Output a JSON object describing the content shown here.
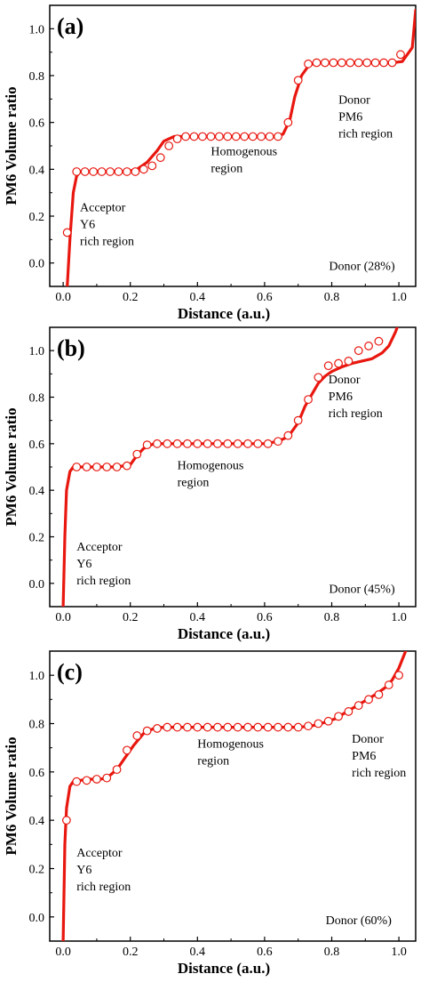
{
  "chart_data": [
    {
      "type": "line",
      "panel_label": "(a)",
      "xlabel": "Distance (a.u.)",
      "ylabel": "PM6 Volume ratio",
      "xlim": [
        -0.04,
        1.05
      ],
      "ylim": [
        -0.1,
        1.1
      ],
      "xticks": [
        "0.0",
        "0.2",
        "0.4",
        "0.6",
        "0.8",
        "1.0"
      ],
      "yticks": [
        "0.0",
        "0.2",
        "0.4",
        "0.6",
        "0.8",
        "1.0"
      ],
      "grid": false,
      "series": [
        {
          "color": "#e8170f",
          "x": [
            0.012,
            0.02,
            0.03,
            0.04,
            0.05,
            0.07,
            0.1,
            0.13,
            0.16,
            0.19,
            0.22,
            0.25,
            0.28,
            0.3,
            0.33,
            0.36,
            0.4,
            0.44,
            0.48,
            0.52,
            0.56,
            0.6,
            0.63,
            0.655,
            0.675,
            0.69,
            0.71,
            0.73,
            0.75,
            0.78,
            0.82,
            0.86,
            0.9,
            0.94,
            0.98,
            1.01,
            1.04,
            1.05
          ],
          "y": [
            -0.1,
            0.1,
            0.3,
            0.37,
            0.39,
            0.39,
            0.39,
            0.39,
            0.39,
            0.39,
            0.4,
            0.43,
            0.48,
            0.52,
            0.54,
            0.54,
            0.54,
            0.54,
            0.54,
            0.54,
            0.54,
            0.54,
            0.54,
            0.55,
            0.61,
            0.71,
            0.8,
            0.84,
            0.855,
            0.855,
            0.855,
            0.855,
            0.855,
            0.855,
            0.855,
            0.86,
            0.92,
            1.08
          ]
        }
      ],
      "markers": {
        "x": [
          0.012,
          0.04,
          0.065,
          0.09,
          0.115,
          0.14,
          0.165,
          0.19,
          0.215,
          0.24,
          0.265,
          0.29,
          0.315,
          0.34,
          0.365,
          0.39,
          0.415,
          0.44,
          0.465,
          0.49,
          0.515,
          0.54,
          0.565,
          0.59,
          0.615,
          0.64,
          0.67,
          0.7,
          0.73,
          0.755,
          0.78,
          0.805,
          0.83,
          0.855,
          0.88,
          0.905,
          0.93,
          0.955,
          0.98,
          1.005
        ],
        "y": [
          0.13,
          0.39,
          0.39,
          0.39,
          0.39,
          0.39,
          0.39,
          0.39,
          0.39,
          0.4,
          0.415,
          0.45,
          0.5,
          0.53,
          0.54,
          0.54,
          0.54,
          0.54,
          0.54,
          0.54,
          0.54,
          0.54,
          0.54,
          0.54,
          0.54,
          0.54,
          0.6,
          0.78,
          0.85,
          0.855,
          0.855,
          0.855,
          0.855,
          0.855,
          0.855,
          0.855,
          0.855,
          0.855,
          0.855,
          0.89
        ]
      },
      "annotations": [
        {
          "lines": [
            "Acceptor",
            "Y6",
            "rich region"
          ],
          "x": 0.05,
          "y": 0.22
        },
        {
          "lines": [
            "Homogenous",
            "region"
          ],
          "x": 0.44,
          "y": 0.46
        },
        {
          "lines": [
            "Donor",
            "PM6",
            "rich region"
          ],
          "x": 0.82,
          "y": 0.68
        },
        {
          "lines": [
            "Donor (28%)"
          ],
          "x": 0.89,
          "y": -0.03,
          "align": "middle"
        }
      ]
    },
    {
      "type": "line",
      "panel_label": "(b)",
      "xlabel": "Distance (a.u.)",
      "ylabel": "PM6 Volume ratio",
      "xlim": [
        -0.04,
        1.05
      ],
      "ylim": [
        -0.1,
        1.1
      ],
      "xticks": [
        "0.0",
        "0.2",
        "0.4",
        "0.6",
        "0.8",
        "1.0"
      ],
      "yticks": [
        "0.0",
        "0.2",
        "0.4",
        "0.6",
        "0.8",
        "1.0"
      ],
      "grid": false,
      "series": [
        {
          "color": "#e8170f",
          "x": [
            0.0,
            0.005,
            0.01,
            0.02,
            0.03,
            0.05,
            0.08,
            0.12,
            0.16,
            0.2,
            0.22,
            0.24,
            0.27,
            0.3,
            0.35,
            0.4,
            0.45,
            0.5,
            0.55,
            0.6,
            0.64,
            0.67,
            0.7,
            0.72,
            0.74,
            0.76,
            0.78,
            0.8,
            0.83,
            0.86,
            0.89,
            0.92,
            0.95,
            0.97,
            0.99,
            1.0
          ],
          "y": [
            -0.1,
            0.2,
            0.4,
            0.48,
            0.5,
            0.5,
            0.5,
            0.5,
            0.5,
            0.51,
            0.55,
            0.58,
            0.6,
            0.6,
            0.6,
            0.6,
            0.6,
            0.6,
            0.6,
            0.6,
            0.61,
            0.63,
            0.69,
            0.76,
            0.81,
            0.86,
            0.89,
            0.91,
            0.93,
            0.945,
            0.955,
            0.965,
            0.99,
            1.02,
            1.08,
            1.12
          ]
        }
      ],
      "markers": {
        "x": [
          0.04,
          0.07,
          0.1,
          0.13,
          0.16,
          0.19,
          0.22,
          0.25,
          0.28,
          0.31,
          0.34,
          0.37,
          0.4,
          0.43,
          0.46,
          0.49,
          0.52,
          0.55,
          0.58,
          0.61,
          0.64,
          0.67,
          0.7,
          0.73,
          0.76,
          0.79,
          0.82,
          0.85,
          0.88,
          0.91,
          0.94
        ],
        "y": [
          0.5,
          0.5,
          0.5,
          0.5,
          0.5,
          0.505,
          0.555,
          0.595,
          0.6,
          0.6,
          0.6,
          0.6,
          0.6,
          0.6,
          0.6,
          0.6,
          0.6,
          0.6,
          0.6,
          0.6,
          0.61,
          0.635,
          0.7,
          0.79,
          0.885,
          0.935,
          0.945,
          0.955,
          1.0,
          1.02,
          1.04
        ]
      },
      "annotations": [
        {
          "lines": [
            "Acceptor",
            "Y6",
            "rich region"
          ],
          "x": 0.04,
          "y": 0.14
        },
        {
          "lines": [
            "Homogenous",
            "region"
          ],
          "x": 0.34,
          "y": 0.49
        },
        {
          "lines": [
            "Donor",
            "PM6",
            "rich region"
          ],
          "x": 0.79,
          "y": 0.86
        },
        {
          "lines": [
            "Donor (45%)"
          ],
          "x": 0.89,
          "y": -0.04,
          "align": "middle"
        }
      ]
    },
    {
      "type": "line",
      "panel_label": "(c)",
      "xlabel": "Distance (a.u.)",
      "ylabel": "PM6 Volume ratio",
      "xlim": [
        -0.04,
        1.05
      ],
      "ylim": [
        -0.1,
        1.1
      ],
      "xticks": [
        "0.0",
        "0.2",
        "0.4",
        "0.6",
        "0.8",
        "1.0"
      ],
      "yticks": [
        "0.0",
        "0.2",
        "0.4",
        "0.6",
        "0.8",
        "1.0"
      ],
      "grid": false,
      "series": [
        {
          "color": "#e8170f",
          "x": [
            0.0,
            0.005,
            0.01,
            0.02,
            0.03,
            0.05,
            0.08,
            0.11,
            0.13,
            0.16,
            0.19,
            0.21,
            0.24,
            0.27,
            0.3,
            0.35,
            0.4,
            0.45,
            0.5,
            0.55,
            0.6,
            0.65,
            0.7,
            0.74,
            0.78,
            0.81,
            0.84,
            0.87,
            0.9,
            0.93,
            0.96,
            0.98,
            1.0,
            1.02
          ],
          "y": [
            -0.1,
            0.3,
            0.45,
            0.54,
            0.56,
            0.565,
            0.57,
            0.57,
            0.575,
            0.61,
            0.67,
            0.71,
            0.76,
            0.78,
            0.785,
            0.785,
            0.785,
            0.785,
            0.785,
            0.785,
            0.785,
            0.785,
            0.785,
            0.79,
            0.805,
            0.82,
            0.845,
            0.87,
            0.895,
            0.92,
            0.95,
            0.98,
            1.03,
            1.1
          ]
        }
      ],
      "markers": {
        "x": [
          0.01,
          0.04,
          0.07,
          0.1,
          0.13,
          0.16,
          0.19,
          0.22,
          0.25,
          0.28,
          0.31,
          0.34,
          0.37,
          0.4,
          0.43,
          0.46,
          0.49,
          0.52,
          0.55,
          0.58,
          0.61,
          0.64,
          0.67,
          0.7,
          0.73,
          0.76,
          0.79,
          0.82,
          0.85,
          0.88,
          0.91,
          0.94,
          0.97,
          1.0
        ],
        "y": [
          0.4,
          0.56,
          0.565,
          0.57,
          0.575,
          0.61,
          0.69,
          0.75,
          0.77,
          0.78,
          0.785,
          0.785,
          0.785,
          0.785,
          0.785,
          0.785,
          0.785,
          0.785,
          0.785,
          0.785,
          0.785,
          0.785,
          0.785,
          0.785,
          0.79,
          0.8,
          0.81,
          0.83,
          0.85,
          0.875,
          0.9,
          0.92,
          0.96,
          1.0
        ]
      },
      "annotations": [
        {
          "lines": [
            "Acceptor",
            "Y6",
            "rich region"
          ],
          "x": 0.04,
          "y": 0.25
        },
        {
          "lines": [
            "Homogenous",
            "region"
          ],
          "x": 0.4,
          "y": 0.7
        },
        {
          "lines": [
            "Donor",
            "PM6",
            "rich region"
          ],
          "x": 0.86,
          "y": 0.72
        },
        {
          "lines": [
            "Donor (60%)"
          ],
          "x": 0.88,
          "y": -0.03,
          "align": "middle"
        }
      ]
    }
  ]
}
